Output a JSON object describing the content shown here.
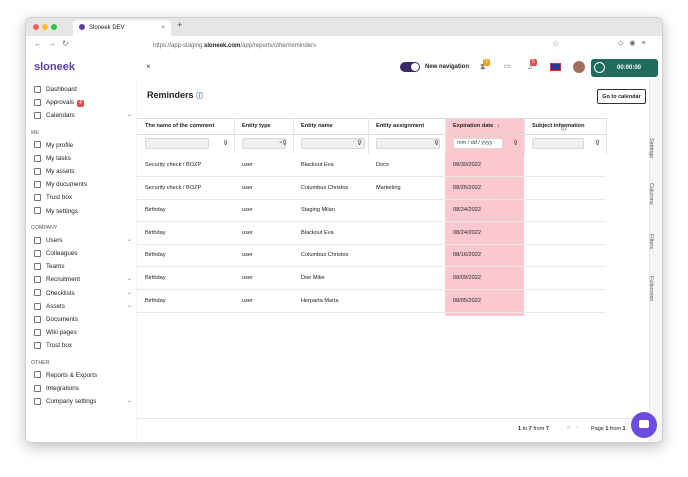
{
  "browser": {
    "tab_title": "Sloneek DEV",
    "url": {
      "prefix": "https://app-staging.",
      "domain": "sloneek.com",
      "path": "/app/reports/other/reminders"
    }
  },
  "sidebar": {
    "logo": "sloneek",
    "groups": [
      {
        "items": [
          {
            "label": "Dashboard"
          },
          {
            "label": "Approvals",
            "badge": "4"
          },
          {
            "label": "Calendars",
            "expandable": true
          }
        ]
      },
      {
        "heading": "ME",
        "items": [
          {
            "label": "My profile"
          },
          {
            "label": "My tasks"
          },
          {
            "label": "My assets"
          },
          {
            "label": "My documents"
          },
          {
            "label": "Trust box"
          },
          {
            "label": "My settings"
          }
        ]
      },
      {
        "heading": "COMPANY",
        "items": [
          {
            "label": "Users",
            "expandable": true
          },
          {
            "label": "Colleagues"
          },
          {
            "label": "Teams"
          },
          {
            "label": "Recruitment",
            "expandable": true
          },
          {
            "label": "Checklists",
            "expandable": true
          },
          {
            "label": "Assets",
            "expandable": true
          },
          {
            "label": "Documents"
          },
          {
            "label": "Wiki pages"
          },
          {
            "label": "Trust box"
          }
        ]
      },
      {
        "heading": "OTHER",
        "items": [
          {
            "label": "Reports & Exports"
          },
          {
            "label": "Integrations"
          },
          {
            "label": "Company settings",
            "expandable": true
          }
        ]
      }
    ]
  },
  "topbar": {
    "close": "×",
    "toggle_label": "New navigation",
    "badge_hourglass": "1",
    "badge_bell": "5",
    "timer": "00:00:00"
  },
  "page": {
    "title": "Reminders",
    "button": "Go to calendar",
    "table": {
      "columns": [
        "The name of the comment",
        "Entity type",
        "Entity name",
        "Entity assignment",
        "Expiration date",
        "Subject information"
      ],
      "date_placeholder": "mm / dd / yyyy",
      "rows": [
        [
          "Security check / BOZP",
          "user",
          "Blackout Eva",
          "Docs",
          "08/30/2022"
        ],
        [
          "Security check / BOZP",
          "user",
          "Columbus Christos",
          "Marketing",
          "08/25/2022"
        ],
        [
          "Birthday",
          "user",
          "Staging Milan",
          "",
          "08/24/2022"
        ],
        [
          "Birthday",
          "user",
          "Blackout Eva",
          "",
          "08/24/2022"
        ],
        [
          "Birthday",
          "user",
          "Columbus Christos",
          "",
          "08/16/2022"
        ],
        [
          "Birthday",
          "user",
          "Doe Mike",
          "",
          "08/09/2022"
        ],
        [
          "Birthday",
          "user",
          "Herparta Marta",
          "",
          "08/05/2022"
        ]
      ]
    },
    "pagination": {
      "start": "1",
      "to_word": "to",
      "end": "7",
      "from_word": "from",
      "total": "7",
      "page_word": "Page",
      "page": "1",
      "of_word": "from",
      "pages": "1"
    },
    "side_tabs": [
      "Settings",
      "Columns",
      "Filters",
      "Fullscreen"
    ]
  }
}
